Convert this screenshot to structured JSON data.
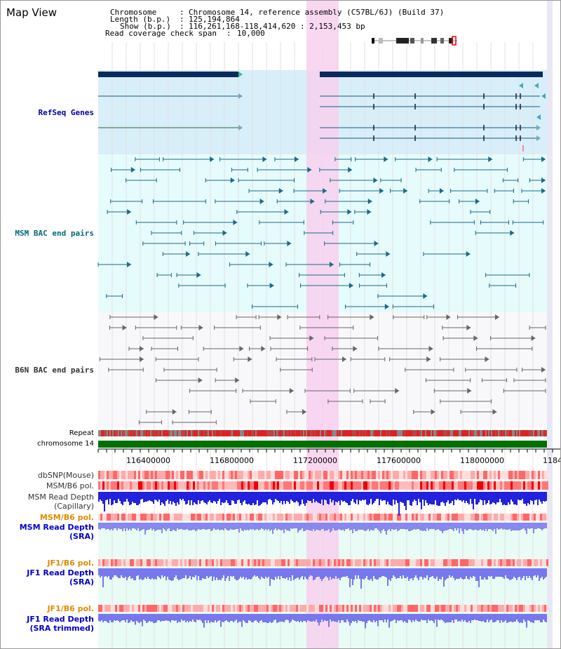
{
  "window": {
    "title": "Map View"
  },
  "info": {
    "chromosome_key": "Chromosome",
    "chromosome_value": "Chromosome 14, reference assembly (C57BL/6J) (Build 37)",
    "length_key": "Length (b.p.)",
    "length_value": "125,194,864",
    "show_key": "Show (b.p.)",
    "show_value": "116,261,168-118,414,620 : 2,153,453 bp",
    "span_key": "Read coverage check span",
    "span_value": "10,000"
  },
  "tracks": {
    "refseq": "RefSeq Genes",
    "msm_bac": "MSM BAC end pairs",
    "b6n_bac": "B6N BAC end pairs",
    "repeat": "Repeat",
    "chromosome": "chromosome 14",
    "dbsnp": "dbSNP(Mouse)",
    "msm_pol_1": "MSM/B6 pol.",
    "msm_depth_cap_1": "MSM Read Depth",
    "msm_depth_cap_2": "(Capillary)",
    "msm_pol_2": "MSM/B6 pol.",
    "msm_depth_sra_1": "MSM Read Depth",
    "msm_depth_sra_2": "(SRA)",
    "jf1_pol_1": "JF1/B6 pol.",
    "jf1_depth_sra_1": "JF1 Read Depth",
    "jf1_depth_sra_2": "(SRA)",
    "jf1_pol_2": "JF1/B6 pol.",
    "jf1_depth_trim_1": "JF1 Read Depth",
    "jf1_depth_trim_2": "(SRA trimmed)"
  },
  "axis": {
    "ticks": [
      "116400000",
      "116800000",
      "117200000",
      "117600000",
      "118000000",
      "1184"
    ]
  },
  "colors": {
    "gene": "#0a2a5e",
    "refseq_label": "#0000aa",
    "msm_label": "#006a7a",
    "b6n_label": "#333333",
    "pol_label": "#e08a00",
    "depth_label": "#0000cc",
    "highlight": "#f7d0ef",
    "chromosome_bar": "#007000"
  }
}
